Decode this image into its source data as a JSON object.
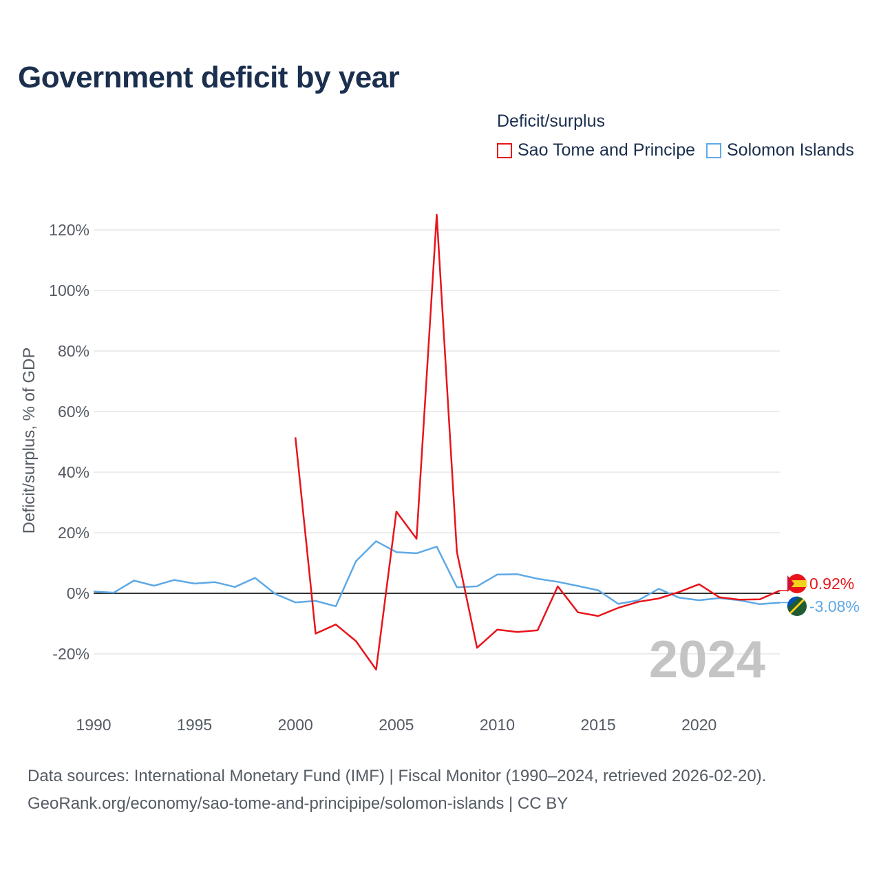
{
  "title": "Government deficit by year",
  "legend": {
    "title": "Deficit/surplus",
    "items": [
      {
        "name": "Sao Tome and Principe",
        "color": "#e8141a"
      },
      {
        "name": "Solomon Islands",
        "color": "#5ea9e6"
      }
    ]
  },
  "source_line1": "Data sources: International Monetary Fund (IMF) | Fiscal Monitor (1990–2024, retrieved 2026-02-20).",
  "source_line2": "GeoRank.org/economy/sao-tome-and-principipe/solomon-islands | CC BY",
  "chart_data": {
    "type": "line",
    "title": "Government deficit by year",
    "xlabel": "",
    "ylabel": "Deficit/surplus, % of GDP",
    "xlim": [
      1990,
      2024
    ],
    "ylim": [
      -30,
      130
    ],
    "x_ticks": [
      1990,
      1995,
      2000,
      2005,
      2010,
      2015,
      2020
    ],
    "y_ticks": [
      -20,
      0,
      20,
      40,
      60,
      80,
      100,
      120
    ],
    "y_tick_labels": [
      "-20%",
      "0%",
      "20%",
      "40%",
      "60%",
      "80%",
      "100%",
      "120%"
    ],
    "x_tick_labels": [
      "1990",
      "1995",
      "2000",
      "2005",
      "2010",
      "2015",
      "2020"
    ],
    "current_year_label": "2024",
    "series": [
      {
        "name": "Sao Tome and Principe",
        "color": "#e8141a",
        "end_label": "0.92%",
        "x": [
          2000,
          2001,
          2002,
          2003,
          2004,
          2005,
          2006,
          2007,
          2008,
          2009,
          2010,
          2011,
          2012,
          2013,
          2014,
          2015,
          2016,
          2017,
          2018,
          2019,
          2020,
          2021,
          2022,
          2023,
          2024
        ],
        "values": [
          51.5,
          -13.3,
          -10.3,
          -15.8,
          -25.2,
          27.0,
          18.0,
          125.0,
          13.7,
          -18.0,
          -12.0,
          -12.8,
          -12.2,
          2.3,
          -6.3,
          -7.5,
          -4.8,
          -2.8,
          -1.7,
          0.4,
          3.0,
          -1.3,
          -2.1,
          -2.0,
          0.92
        ]
      },
      {
        "name": "Solomon Islands",
        "color": "#5ea9e6",
        "end_label": "-3.08%",
        "x": [
          1990,
          1991,
          1992,
          1993,
          1994,
          1995,
          1996,
          1997,
          1998,
          1999,
          2000,
          2001,
          2002,
          2003,
          2004,
          2005,
          2006,
          2007,
          2008,
          2009,
          2010,
          2011,
          2012,
          2013,
          2014,
          2015,
          2016,
          2017,
          2018,
          2019,
          2020,
          2021,
          2022,
          2023,
          2024
        ],
        "values": [
          0.6,
          0.2,
          4.2,
          2.5,
          4.4,
          3.2,
          3.7,
          2.1,
          5.1,
          -0.2,
          -3.0,
          -2.5,
          -4.3,
          10.6,
          17.2,
          13.6,
          13.2,
          15.4,
          2.0,
          2.3,
          6.2,
          6.3,
          4.8,
          3.8,
          2.4,
          1.0,
          -3.5,
          -2.3,
          1.5,
          -1.4,
          -2.3,
          -1.6,
          -2.3,
          -3.6,
          -3.08
        ]
      }
    ]
  }
}
